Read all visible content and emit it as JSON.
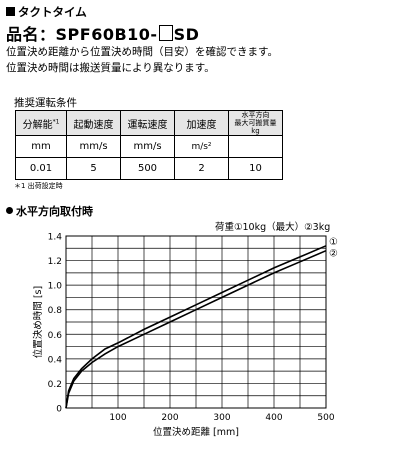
{
  "section_title": "タクトタイム",
  "product_label": "品名：",
  "product_code": "SPF60B10-",
  "product_suffix": "SD",
  "description_lines": [
    "位置決め距離から位置決め時間（目安）を確認できます。",
    "位置決め時間は搬送質量により異なります。"
  ],
  "conditions_title": "推奨運転条件",
  "table": {
    "headers": [
      "分解能",
      "起動速度",
      "運転速度",
      "加速度",
      "水平方向\n最大可搬質量\nkg"
    ],
    "header_note_mark": "*1",
    "units": [
      "mm",
      "mm/s",
      "mm/s",
      "m/s²",
      ""
    ],
    "values": [
      "0.01",
      "5",
      "500",
      "2",
      "10"
    ]
  },
  "footnote": "＊1 出荷設定時",
  "chart_section_title": "水平方向取付時",
  "load_legend": "荷重①10kg（最大）②3kg",
  "chart_data": {
    "type": "line",
    "title": "",
    "xlabel": "位置決め距離 [mm]",
    "ylabel": "位置決め時間 [s]",
    "xlim": [
      0,
      500
    ],
    "ylim": [
      0,
      1.4
    ],
    "xticks": [
      100,
      200,
      300,
      400,
      500
    ],
    "yticks": [
      0,
      0.2,
      0.4,
      0.6,
      0.8,
      1.0,
      1.2,
      1.4
    ],
    "grid": true,
    "series": [
      {
        "name": "①",
        "x": [
          0,
          5,
          15,
          30,
          50,
          75,
          100,
          150,
          200,
          250,
          300,
          350,
          400,
          450,
          500
        ],
        "y": [
          0,
          0.14,
          0.24,
          0.32,
          0.4,
          0.48,
          0.53,
          0.64,
          0.74,
          0.84,
          0.94,
          1.04,
          1.14,
          1.23,
          1.32
        ]
      },
      {
        "name": "②",
        "x": [
          0,
          5,
          15,
          30,
          50,
          75,
          100,
          150,
          200,
          250,
          300,
          350,
          400,
          450,
          500
        ],
        "y": [
          0,
          0.12,
          0.22,
          0.3,
          0.37,
          0.44,
          0.5,
          0.6,
          0.7,
          0.8,
          0.9,
          1.0,
          1.1,
          1.19,
          1.28
        ]
      }
    ]
  }
}
